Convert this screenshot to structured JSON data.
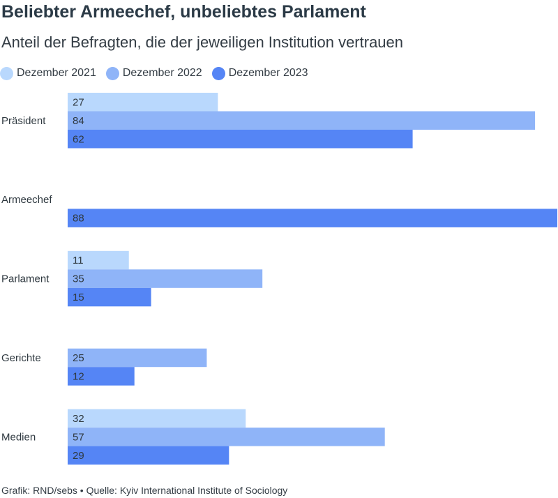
{
  "title": "Beliebter Armeechef, unbeliebtes Parlament",
  "subtitle": "Anteil der Befragten, die der jeweiligen Institution vertrauen",
  "footer": "Grafik: RND/sebs • Quelle: Kyiv International Institute of Sociology",
  "colors": {
    "Dezember 2021": "#b9d8fd",
    "Dezember 2022": "#8fb4f8",
    "Dezember 2023": "#5585f5"
  },
  "chart_data": {
    "type": "bar",
    "orientation": "horizontal",
    "categories": [
      "Präsident",
      "Armeechef",
      "Parlament",
      "Gerichte",
      "Medien"
    ],
    "series": [
      {
        "name": "Dezember 2021",
        "values": [
          27,
          null,
          11,
          null,
          32
        ]
      },
      {
        "name": "Dezember 2022",
        "values": [
          84,
          null,
          35,
          25,
          57
        ]
      },
      {
        "name": "Dezember 2023",
        "values": [
          62,
          88,
          15,
          12,
          29
        ]
      }
    ],
    "xlim": [
      0,
      88
    ],
    "grid": false,
    "legend_position": "top-left",
    "data_labels": true
  }
}
